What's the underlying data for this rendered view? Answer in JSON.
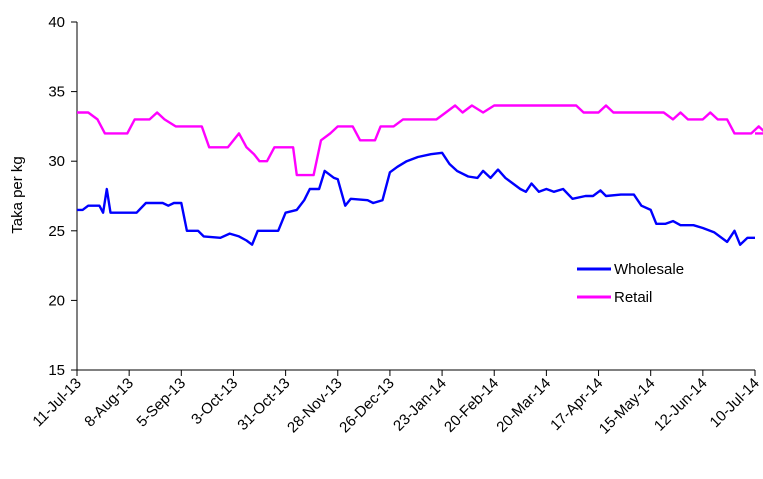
{
  "chart_data": {
    "type": "line",
    "xlabel": "",
    "ylabel": "Taka per kg",
    "ylim": [
      15,
      40
    ],
    "yticks": [
      15,
      20,
      25,
      30,
      35,
      40
    ],
    "xticks": [
      "11-Jul-13",
      "8-Aug-13",
      "5-Sep-13",
      "3-Oct-13",
      "31-Oct-13",
      "28-Nov-13",
      "26-Dec-13",
      "23-Jan-14",
      "20-Feb-14",
      "20-Mar-14",
      "17-Apr-14",
      "15-May-14",
      "12-Jun-14",
      "10-Jul-14"
    ],
    "x_start": "11-Jul-13",
    "x_end": "10-Jul-14",
    "grid": false,
    "legend_position": "right",
    "series": [
      {
        "name": "Wholesale",
        "color": "#0000ff",
        "points": [
          [
            "11-Jul-13",
            26.5
          ],
          [
            "14-Jul-13",
            26.5
          ],
          [
            "17-Jul-13",
            26.8
          ],
          [
            "23-Jul-13",
            26.8
          ],
          [
            "25-Jul-13",
            26.3
          ],
          [
            "27-Jul-13",
            28.0
          ],
          [
            "29-Jul-13",
            26.3
          ],
          [
            "12-Aug-13",
            26.3
          ],
          [
            "17-Aug-13",
            27.0
          ],
          [
            "26-Aug-13",
            27.0
          ],
          [
            "29-Aug-13",
            26.8
          ],
          [
            "1-Sep-13",
            27.0
          ],
          [
            "5-Sep-13",
            27.0
          ],
          [
            "8-Sep-13",
            25.0
          ],
          [
            "14-Sep-13",
            25.0
          ],
          [
            "17-Sep-13",
            24.6
          ],
          [
            "26-Sep-13",
            24.5
          ],
          [
            "1-Oct-13",
            24.8
          ],
          [
            "6-Oct-13",
            24.6
          ],
          [
            "10-Oct-13",
            24.3
          ],
          [
            "13-Oct-13",
            24.0
          ],
          [
            "16-Oct-13",
            25.0
          ],
          [
            "27-Oct-13",
            25.0
          ],
          [
            "31-Oct-13",
            26.3
          ],
          [
            "6-Nov-13",
            26.5
          ],
          [
            "10-Nov-13",
            27.2
          ],
          [
            "13-Nov-13",
            28.0
          ],
          [
            "18-Nov-13",
            28.0
          ],
          [
            "21-Nov-13",
            29.3
          ],
          [
            "26-Nov-13",
            28.8
          ],
          [
            "28-Nov-13",
            28.7
          ],
          [
            "2-Dec-13",
            26.8
          ],
          [
            "5-Dec-13",
            27.3
          ],
          [
            "14-Dec-13",
            27.2
          ],
          [
            "17-Dec-13",
            27.0
          ],
          [
            "22-Dec-13",
            27.2
          ],
          [
            "26-Dec-13",
            29.2
          ],
          [
            "30-Dec-13",
            29.6
          ],
          [
            "4-Jan-14",
            30.0
          ],
          [
            "10-Jan-14",
            30.3
          ],
          [
            "17-Jan-14",
            30.5
          ],
          [
            "23-Jan-14",
            30.6
          ],
          [
            "27-Jan-14",
            29.8
          ],
          [
            "31-Jan-14",
            29.3
          ],
          [
            "6-Feb-14",
            28.9
          ],
          [
            "11-Feb-14",
            28.8
          ],
          [
            "14-Feb-14",
            29.3
          ],
          [
            "18-Feb-14",
            28.8
          ],
          [
            "22-Feb-14",
            29.4
          ],
          [
            "26-Feb-14",
            28.8
          ],
          [
            "2-Mar-14",
            28.4
          ],
          [
            "6-Mar-14",
            28.0
          ],
          [
            "9-Mar-14",
            27.8
          ],
          [
            "12-Mar-14",
            28.4
          ],
          [
            "16-Mar-14",
            27.8
          ],
          [
            "20-Mar-14",
            28.0
          ],
          [
            "24-Mar-14",
            27.8
          ],
          [
            "29-Mar-14",
            28.0
          ],
          [
            "3-Apr-14",
            27.3
          ],
          [
            "10-Apr-14",
            27.5
          ],
          [
            "14-Apr-14",
            27.5
          ],
          [
            "18-Apr-14",
            27.9
          ],
          [
            "21-Apr-14",
            27.5
          ],
          [
            "29-Apr-14",
            27.6
          ],
          [
            "6-May-14",
            27.6
          ],
          [
            "10-May-14",
            26.8
          ],
          [
            "15-May-14",
            26.5
          ],
          [
            "18-May-14",
            25.5
          ],
          [
            "23-May-14",
            25.5
          ],
          [
            "27-May-14",
            25.7
          ],
          [
            "31-May-14",
            25.4
          ],
          [
            "7-Jun-14",
            25.4
          ],
          [
            "12-Jun-14",
            25.2
          ],
          [
            "18-Jun-14",
            24.9
          ],
          [
            "25-Jun-14",
            24.2
          ],
          [
            "29-Jun-14",
            25.0
          ],
          [
            "2-Jul-14",
            24.0
          ],
          [
            "6-Jul-14",
            24.5
          ],
          [
            "10-Jul-14",
            24.5
          ]
        ]
      },
      {
        "name": "Retail",
        "color": "#ff00ff",
        "points": [
          [
            "11-Jul-13",
            33.5
          ],
          [
            "17-Jul-13",
            33.5
          ],
          [
            "22-Jul-13",
            33.0
          ],
          [
            "26-Jul-13",
            32.0
          ],
          [
            "7-Aug-13",
            32.0
          ],
          [
            "11-Aug-13",
            33.0
          ],
          [
            "19-Aug-13",
            33.0
          ],
          [
            "23-Aug-13",
            33.5
          ],
          [
            "27-Aug-13",
            33.0
          ],
          [
            "2-Sep-13",
            32.5
          ],
          [
            "16-Sep-13",
            32.5
          ],
          [
            "20-Sep-13",
            31.0
          ],
          [
            "30-Sep-13",
            31.0
          ],
          [
            "3-Oct-13",
            31.5
          ],
          [
            "6-Oct-13",
            32.0
          ],
          [
            "10-Oct-13",
            31.0
          ],
          [
            "14-Oct-13",
            30.5
          ],
          [
            "17-Oct-13",
            30.0
          ],
          [
            "21-Oct-13",
            30.0
          ],
          [
            "25-Oct-13",
            31.0
          ],
          [
            "4-Nov-13",
            31.0
          ],
          [
            "6-Nov-13",
            29.0
          ],
          [
            "15-Nov-13",
            29.0
          ],
          [
            "19-Nov-13",
            31.5
          ],
          [
            "24-Nov-13",
            32.0
          ],
          [
            "28-Nov-13",
            32.5
          ],
          [
            "6-Dec-13",
            32.5
          ],
          [
            "10-Dec-13",
            31.5
          ],
          [
            "18-Dec-13",
            31.5
          ],
          [
            "21-Dec-13",
            32.5
          ],
          [
            "28-Dec-13",
            32.5
          ],
          [
            "2-Jan-14",
            33.0
          ],
          [
            "13-Jan-14",
            33.0
          ],
          [
            "20-Jan-14",
            33.0
          ],
          [
            "25-Jan-14",
            33.5
          ],
          [
            "30-Jan-14",
            34.0
          ],
          [
            "3-Feb-14",
            33.5
          ],
          [
            "8-Feb-14",
            34.0
          ],
          [
            "14-Feb-14",
            33.5
          ],
          [
            "20-Feb-14",
            34.0
          ],
          [
            "5-Apr-14",
            34.0
          ],
          [
            "9-Apr-14",
            33.5
          ],
          [
            "17-Apr-14",
            33.5
          ],
          [
            "21-Apr-14",
            34.0
          ],
          [
            "25-Apr-14",
            33.5
          ],
          [
            "22-May-14",
            33.5
          ],
          [
            "27-May-14",
            33.0
          ],
          [
            "31-May-14",
            33.5
          ],
          [
            "4-Jun-14",
            33.0
          ],
          [
            "12-Jun-14",
            33.0
          ],
          [
            "16-Jun-14",
            33.5
          ],
          [
            "20-Jun-14",
            33.0
          ],
          [
            "25-Jun-14",
            33.0
          ],
          [
            "29-Jun-14",
            32.0
          ],
          [
            "8-Jul-14",
            32.0
          ],
          [
            "12-Jul-14",
            32.5
          ],
          [
            "16-Jul-14",
            32.0
          ],
          [
            "10-Jul-14",
            32.0
          ]
        ]
      }
    ]
  }
}
